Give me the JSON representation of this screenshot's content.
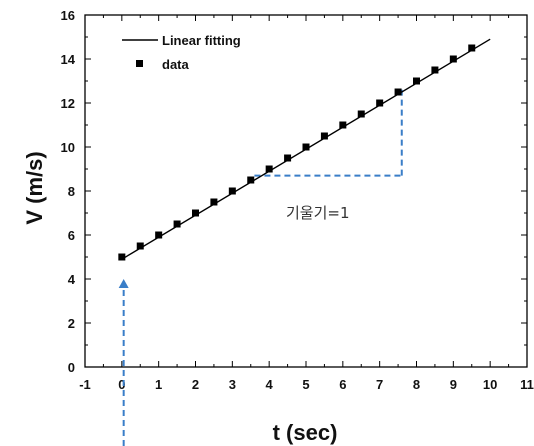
{
  "chart_data": {
    "type": "scatter",
    "title": "",
    "xlabel": "t (sec)",
    "ylabel": "V (m/s)",
    "xlim": [
      -1,
      11
    ],
    "ylim": [
      0,
      16
    ],
    "x_ticks": [
      -1,
      0,
      1,
      2,
      3,
      4,
      5,
      6,
      7,
      8,
      9,
      10,
      11
    ],
    "y_ticks": [
      0,
      2,
      4,
      6,
      8,
      10,
      12,
      14,
      16
    ],
    "grid": false,
    "legend_position": "top-left",
    "series": [
      {
        "name": "data",
        "style": "square-markers",
        "color": "#000000",
        "x": [
          0,
          0.5,
          1,
          1.5,
          2,
          2.5,
          3,
          3.5,
          4,
          4.5,
          5,
          5.5,
          6,
          6.5,
          7,
          7.5,
          8,
          8.5,
          9,
          9.5
        ],
        "y": [
          5.0,
          5.5,
          6.0,
          6.5,
          7.0,
          7.5,
          8.0,
          8.5,
          9.0,
          9.5,
          10.0,
          10.5,
          11.0,
          11.5,
          12.0,
          12.5,
          13.0,
          13.5,
          14.0,
          14.5
        ]
      },
      {
        "name": "Linear fitting",
        "style": "line",
        "color": "#000000",
        "x": [
          0,
          10
        ],
        "y": [
          4.9,
          14.9
        ]
      }
    ],
    "annotations": {
      "slope_label": "기울기=1",
      "slope_triangle": {
        "x_start": 3.6,
        "x_end": 7.6,
        "y_low": 8.7,
        "y_high": 12.6,
        "color": "#3a7ec8"
      },
      "intercept_arrow": {
        "x": 0.05,
        "y_tip": 4.0,
        "color": "#3a7ec8"
      }
    }
  }
}
